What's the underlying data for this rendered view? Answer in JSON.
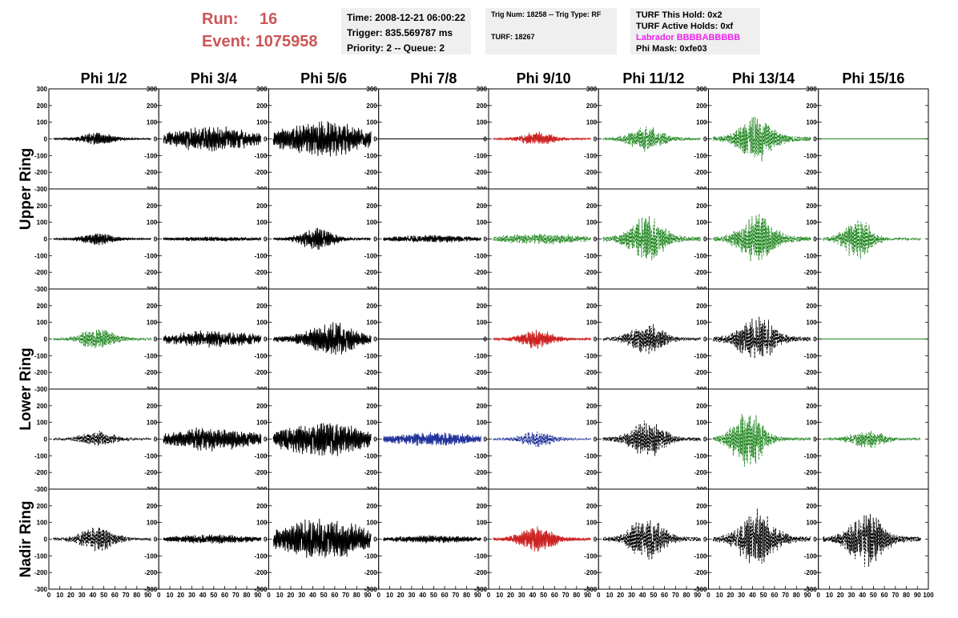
{
  "header": {
    "run_label": "Run:",
    "run_value": "16",
    "event_label": "Event:",
    "event_value": "1075958",
    "time": "Time: 2008-12-21 06:00:22",
    "trigger": "Trigger: 835.569787 ms",
    "priority": "Priority: 2 -- Queue: 2",
    "trig_info": "Trig Num: 18258 -- Trig Type: RF",
    "turf": "TURF: 18267",
    "turf_hold": "TURF This Hold: 0x2",
    "turf_active": "TURF Active Holds: 0xf",
    "labrador": "Labrador BBBBABBBBB",
    "phi_mask": "Phi Mask: 0xfe03"
  },
  "columns": [
    "Phi 1/2",
    "Phi 3/4",
    "Phi 5/6",
    "Phi 7/8",
    "Phi 9/10",
    "Phi 11/12",
    "Phi 13/14",
    "Phi 15/16"
  ],
  "ring_labels": [
    "Upper Ring",
    "Lower Ring",
    "Nadir Ring"
  ],
  "y_ticks": [
    "300",
    "200",
    "100",
    "0",
    "-100",
    "-200",
    "-300"
  ],
  "x_ticks": [
    "0",
    "10",
    "20",
    "30",
    "40",
    "50",
    "60",
    "70",
    "80",
    "90",
    "100"
  ],
  "colors": {
    "title_red": "#cc5555",
    "labrador": "#ee22ee",
    "black": "#000000",
    "green": "#228822",
    "red": "#cc2222",
    "blue": "#223399",
    "info_bg": "#efefef"
  },
  "chart_data": {
    "type": "line",
    "layout": "5 rows x 8 columns of waveform panels",
    "xlim": [
      0,
      100
    ],
    "ylim": [
      -300,
      300
    ],
    "panels": [
      [
        {
          "color": "black",
          "style": "solid",
          "amplitude": 40,
          "envelope": "mid"
        },
        {
          "color": "black",
          "style": "solid",
          "amplitude": 80,
          "envelope": "broad"
        },
        {
          "color": "black",
          "style": "solid",
          "amplitude": 110,
          "envelope": "broad"
        },
        {
          "color": "black",
          "style": "solid",
          "amplitude": 0,
          "envelope": "flat"
        },
        {
          "color": "red",
          "style": "solid",
          "amplitude": 45,
          "envelope": "mid"
        },
        {
          "color": "green",
          "style": "dashed",
          "amplitude": 80,
          "envelope": "mid"
        },
        {
          "color": "green",
          "style": "dashed",
          "amplitude": 150,
          "envelope": "mid"
        },
        {
          "color": "green",
          "style": "solid",
          "amplitude": 0,
          "envelope": "flat"
        }
      ],
      [
        {
          "color": "black",
          "style": "solid",
          "amplitude": 40,
          "envelope": "mid"
        },
        {
          "color": "black",
          "style": "solid",
          "amplitude": 15,
          "envelope": "broad"
        },
        {
          "color": "black",
          "style": "solid",
          "amplitude": 70,
          "envelope": "mid"
        },
        {
          "color": "black",
          "style": "solid",
          "amplitude": 25,
          "envelope": "broad"
        },
        {
          "color": "green",
          "style": "dashed",
          "amplitude": 35,
          "envelope": "broad"
        },
        {
          "color": "green",
          "style": "dashed",
          "amplitude": 150,
          "envelope": "mid"
        },
        {
          "color": "green",
          "style": "dashed",
          "amplitude": 160,
          "envelope": "mid"
        },
        {
          "color": "green",
          "style": "dashed",
          "amplitude": 130,
          "envelope": "early"
        }
      ],
      [
        {
          "color": "green",
          "style": "dashed",
          "amplitude": 70,
          "envelope": "mid"
        },
        {
          "color": "black",
          "style": "solid",
          "amplitude": 55,
          "envelope": "broad"
        },
        {
          "color": "black",
          "style": "solid",
          "amplitude": 110,
          "envelope": "late"
        },
        {
          "color": "black",
          "style": "solid",
          "amplitude": 0,
          "envelope": "flat"
        },
        {
          "color": "red",
          "style": "solid",
          "amplitude": 60,
          "envelope": "mid"
        },
        {
          "color": "black",
          "style": "dashed",
          "amplitude": 100,
          "envelope": "mid"
        },
        {
          "color": "black",
          "style": "dashed",
          "amplitude": 160,
          "envelope": "mid"
        },
        {
          "color": "green",
          "style": "solid",
          "amplitude": 0,
          "envelope": "flat"
        }
      ],
      [
        {
          "color": "black",
          "style": "dashed",
          "amplitude": 50,
          "envelope": "mid"
        },
        {
          "color": "black",
          "style": "solid",
          "amplitude": 75,
          "envelope": "broad"
        },
        {
          "color": "black",
          "style": "solid",
          "amplitude": 110,
          "envelope": "broad"
        },
        {
          "color": "blue",
          "style": "solid",
          "amplitude": 45,
          "envelope": "broad"
        },
        {
          "color": "blue",
          "style": "dashed",
          "amplitude": 50,
          "envelope": "mid"
        },
        {
          "color": "black",
          "style": "dashed",
          "amplitude": 120,
          "envelope": "mid"
        },
        {
          "color": "green",
          "style": "dashed",
          "amplitude": 200,
          "envelope": "early"
        },
        {
          "color": "green",
          "style": "dashed",
          "amplitude": 60,
          "envelope": "mid"
        }
      ],
      [
        {
          "color": "black",
          "style": "dashed",
          "amplitude": 80,
          "envelope": "mid"
        },
        {
          "color": "black",
          "style": "solid",
          "amplitude": 30,
          "envelope": "broad"
        },
        {
          "color": "black",
          "style": "solid",
          "amplitude": 130,
          "envelope": "broad"
        },
        {
          "color": "black",
          "style": "solid",
          "amplitude": 25,
          "envelope": "broad"
        },
        {
          "color": "red",
          "style": "solid",
          "amplitude": 90,
          "envelope": "mid"
        },
        {
          "color": "black",
          "style": "dashed",
          "amplitude": 140,
          "envelope": "mid"
        },
        {
          "color": "black",
          "style": "dashed",
          "amplitude": 190,
          "envelope": "mid"
        },
        {
          "color": "black",
          "style": "dashed",
          "amplitude": 180,
          "envelope": "mid"
        }
      ]
    ]
  }
}
